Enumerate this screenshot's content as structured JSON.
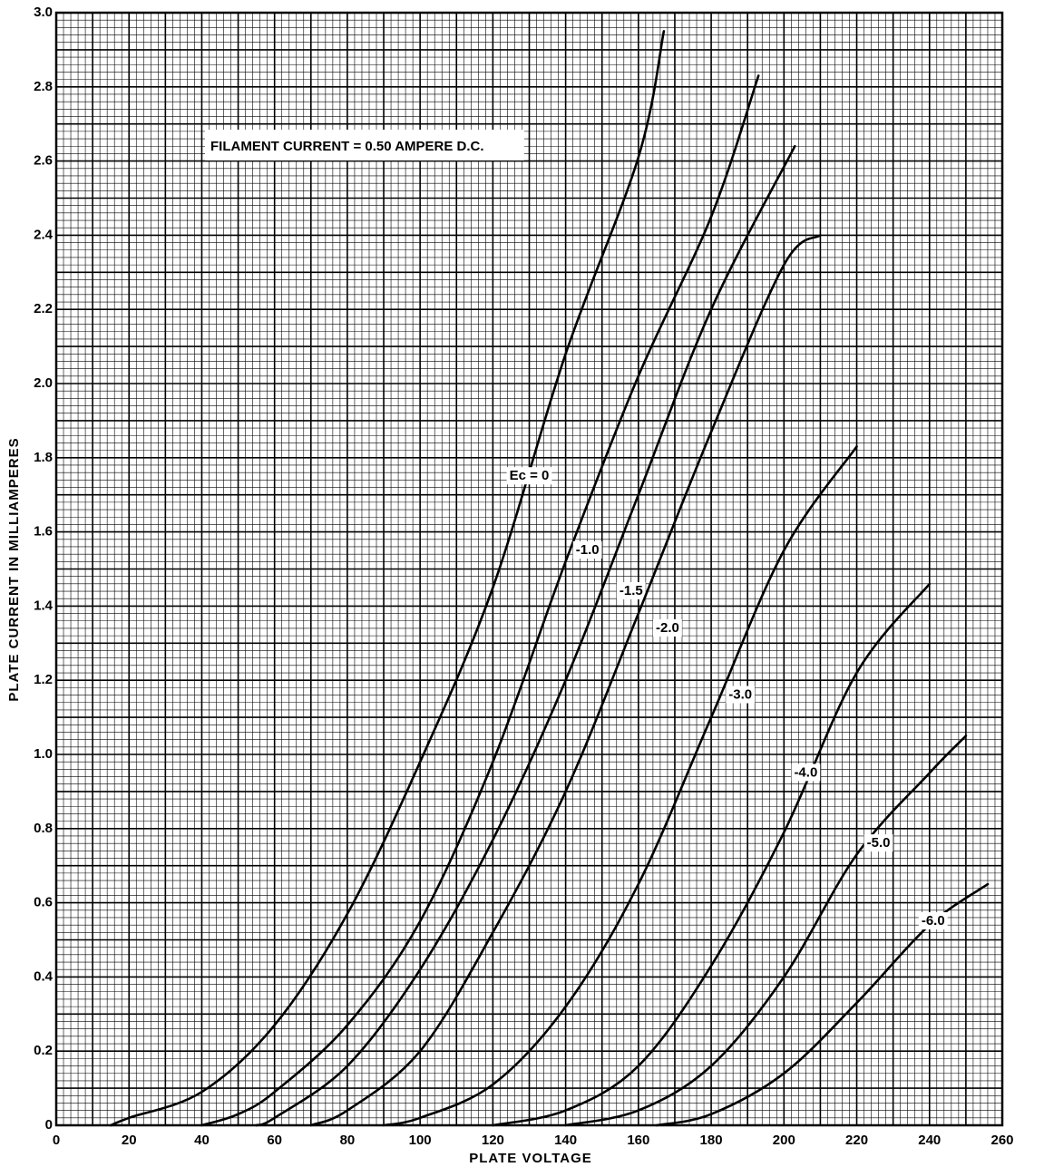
{
  "chart_data": {
    "type": "line",
    "title": "",
    "xlabel": "PLATE VOLTAGE",
    "ylabel": "PLATE CURRENT IN MILLIAMPERES",
    "xlim": [
      0,
      260
    ],
    "ylim": [
      0,
      3.0
    ],
    "x_ticks": [
      0,
      20,
      40,
      60,
      80,
      100,
      120,
      140,
      160,
      180,
      200,
      220,
      240,
      260
    ],
    "y_ticks": [
      0,
      0.2,
      0.4,
      0.6,
      0.8,
      1.0,
      1.2,
      1.4,
      1.6,
      1.8,
      2.0,
      2.2,
      2.4,
      2.6,
      2.8,
      3.0
    ],
    "x_tick_labels": [
      "0",
      "20",
      "40",
      "60",
      "80",
      "100",
      "120",
      "140",
      "160",
      "180",
      "200",
      "220",
      "240",
      "260"
    ],
    "y_tick_labels": [
      "0",
      "0.2",
      "0.4",
      "0.6",
      "0.8",
      "1.0",
      "1.2",
      "1.4",
      "1.6",
      "1.8",
      "2.0",
      "2.2",
      "2.4",
      "2.6",
      "2.8",
      "3.0"
    ],
    "grid": true,
    "grid_minor_x_step": 2,
    "grid_minor_y_step": 0.02,
    "grid_major_x_step": 10,
    "grid_major_y_step": 0.1,
    "annotation": "FILAMENT CURRENT = 0.50 AMPERE D.C.",
    "series": [
      {
        "name": "Ec = 0",
        "label_x": 130,
        "label_y": 1.75,
        "points": [
          [
            15,
            0
          ],
          [
            20,
            0.02
          ],
          [
            40,
            0.09
          ],
          [
            60,
            0.27
          ],
          [
            80,
            0.57
          ],
          [
            100,
            0.98
          ],
          [
            120,
            1.45
          ],
          [
            140,
            2.08
          ],
          [
            160,
            2.61
          ],
          [
            167,
            2.95
          ]
        ]
      },
      {
        "name": "-1.0",
        "label_x": 146,
        "label_y": 1.55,
        "points": [
          [
            40,
            0
          ],
          [
            50,
            0.03
          ],
          [
            60,
            0.09
          ],
          [
            80,
            0.27
          ],
          [
            100,
            0.55
          ],
          [
            120,
            0.98
          ],
          [
            140,
            1.52
          ],
          [
            160,
            2.02
          ],
          [
            180,
            2.45
          ],
          [
            193,
            2.83
          ]
        ]
      },
      {
        "name": "-1.5",
        "label_x": 158,
        "label_y": 1.44,
        "points": [
          [
            55,
            0
          ],
          [
            60,
            0.02
          ],
          [
            80,
            0.16
          ],
          [
            100,
            0.42
          ],
          [
            120,
            0.77
          ],
          [
            140,
            1.2
          ],
          [
            160,
            1.7
          ],
          [
            180,
            2.2
          ],
          [
            203,
            2.64
          ]
        ]
      },
      {
        "name": "-2.0",
        "label_x": 168,
        "label_y": 1.34,
        "points": [
          [
            70,
            0
          ],
          [
            80,
            0.04
          ],
          [
            100,
            0.2
          ],
          [
            120,
            0.52
          ],
          [
            140,
            0.9
          ],
          [
            160,
            1.38
          ],
          [
            180,
            1.87
          ],
          [
            200,
            2.32
          ],
          [
            210,
            2.4
          ]
        ]
      },
      {
        "name": "-3.0",
        "label_x": 188,
        "label_y": 1.16,
        "points": [
          [
            90,
            0
          ],
          [
            100,
            0.02
          ],
          [
            120,
            0.11
          ],
          [
            140,
            0.32
          ],
          [
            160,
            0.65
          ],
          [
            180,
            1.1
          ],
          [
            200,
            1.55
          ],
          [
            220,
            1.83
          ]
        ]
      },
      {
        "name": "-4.0",
        "label_x": 206,
        "label_y": 0.95,
        "points": [
          [
            120,
            0
          ],
          [
            140,
            0.04
          ],
          [
            160,
            0.16
          ],
          [
            180,
            0.43
          ],
          [
            200,
            0.79
          ],
          [
            220,
            1.22
          ],
          [
            240,
            1.46
          ]
        ]
      },
      {
        "name": "-5.0",
        "label_x": 226,
        "label_y": 0.76,
        "points": [
          [
            140,
            0
          ],
          [
            160,
            0.04
          ],
          [
            180,
            0.16
          ],
          [
            200,
            0.4
          ],
          [
            220,
            0.73
          ],
          [
            240,
            0.95
          ],
          [
            250,
            1.05
          ]
        ]
      },
      {
        "name": "-6.0",
        "label_x": 241,
        "label_y": 0.55,
        "points": [
          [
            165,
            0
          ],
          [
            180,
            0.03
          ],
          [
            200,
            0.14
          ],
          [
            220,
            0.33
          ],
          [
            240,
            0.54
          ],
          [
            256,
            0.65
          ]
        ]
      }
    ]
  }
}
